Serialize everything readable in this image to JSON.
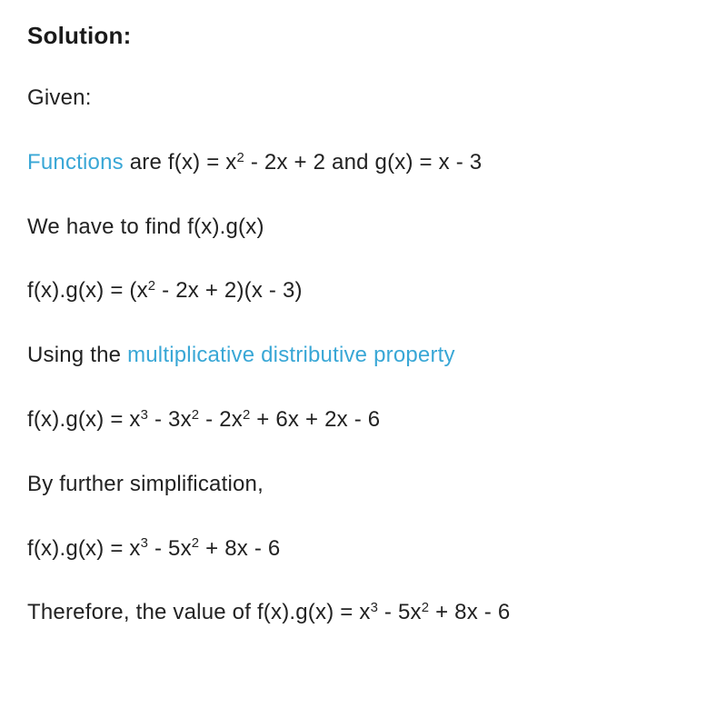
{
  "heading": "Solution:",
  "lines": {
    "given": "Given:",
    "functions_link": "Functions",
    "functions_rest_before_sup": " are f(x) = x",
    "functions_sup1": "2",
    "functions_rest_after_sup": " - 2x + 2 and g(x) = x - 3",
    "tofind": "We have to find f(x).g(x)",
    "step1_before": "f(x).g(x) = (x",
    "step1_sup": "2",
    "step1_after": " - 2x + 2)(x - 3)",
    "using_text": "Using the ",
    "using_link": "multiplicative distributive property",
    "step2_a": "f(x).g(x) = x",
    "step2_s3": "3",
    "step2_b": " - 3x",
    "step2_s2a": "2",
    "step2_c": " - 2x",
    "step2_s2b": "2",
    "step2_d": " + 6x + 2x - 6",
    "simplify": "By further simplification,",
    "step3_a": "f(x).g(x) = x",
    "step3_s3": "3",
    "step3_b": " - 5x",
    "step3_s2": "2",
    "step3_c": " + 8x - 6",
    "final_a": "Therefore, the value of f(x).g(x) = x",
    "final_s3": "3",
    "final_b": " - 5x",
    "final_s2": "2",
    "final_c": " + 8x - 6"
  },
  "colors": {
    "text": "#1a1a1a",
    "link": "#39a7d6",
    "background": "#ffffff"
  },
  "typography": {
    "heading_fontsize": 26,
    "body_fontsize": 24,
    "heading_weight": 700,
    "body_weight": 400
  }
}
